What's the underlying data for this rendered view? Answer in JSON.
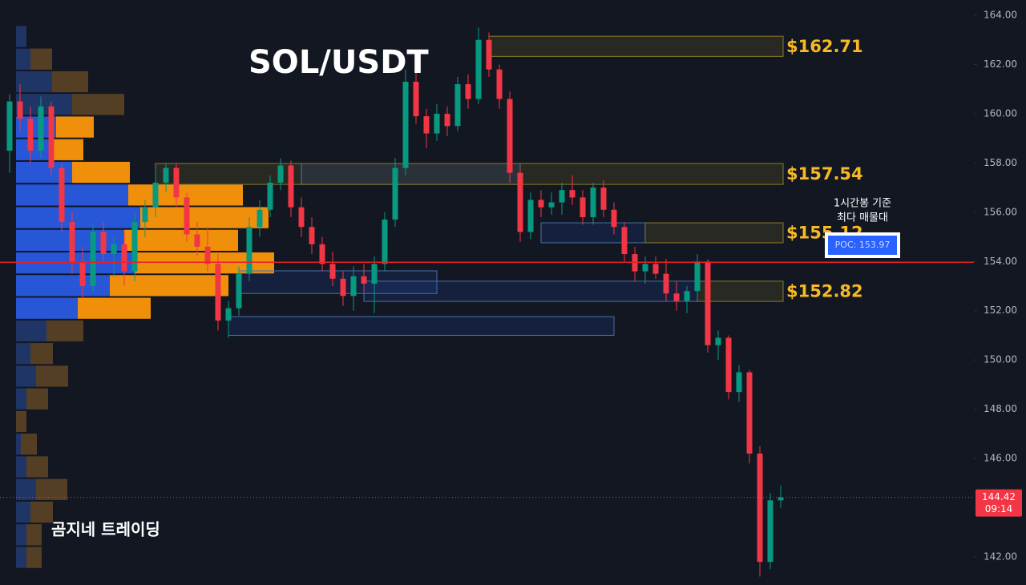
{
  "chart_data": {
    "type": "candlestick",
    "title": "SOL/USDT",
    "watermark": "곰지네 트레이딩",
    "annotation": [
      "1시간봉 기준",
      "최다 매물대"
    ],
    "ylim": [
      140.86,
      164.62
    ],
    "yticks": [
      {
        "value": 142,
        "label": "142.00"
      },
      {
        "value": 144,
        "label": "144.00"
      },
      {
        "value": 146,
        "label": "146.00"
      },
      {
        "value": 148,
        "label": "148.00"
      },
      {
        "value": 150,
        "label": "150.00"
      },
      {
        "value": 152,
        "label": "152.00"
      },
      {
        "value": 154,
        "label": "154.00"
      },
      {
        "value": 156,
        "label": "156.00"
      },
      {
        "value": 158,
        "label": "158.00"
      },
      {
        "value": 160,
        "label": "160.00"
      },
      {
        "value": 162,
        "label": "162.00"
      },
      {
        "value": 164,
        "label": "164.00"
      }
    ],
    "up_color": "#089981",
    "down_color": "#f23645",
    "candles": [
      [
        158.5,
        160.8,
        157.6,
        160.5
      ],
      [
        160.5,
        161.2,
        159.3,
        159.8
      ],
      [
        159.8,
        160.3,
        158.0,
        158.5
      ],
      [
        158.5,
        160.7,
        158.2,
        160.3
      ],
      [
        160.3,
        160.5,
        157.5,
        157.8
      ],
      [
        157.8,
        158.0,
        155.2,
        155.6
      ],
      [
        155.6,
        156.0,
        153.5,
        154.0
      ],
      [
        154.0,
        154.6,
        152.5,
        153.0
      ],
      [
        153.0,
        155.5,
        152.8,
        155.2
      ],
      [
        155.2,
        155.6,
        154.0,
        154.3
      ],
      [
        154.3,
        155.0,
        153.4,
        154.7
      ],
      [
        154.7,
        155.2,
        153.0,
        153.6
      ],
      [
        153.6,
        156.0,
        153.2,
        155.6
      ],
      [
        155.6,
        156.5,
        155.0,
        156.2
      ],
      [
        156.2,
        157.8,
        155.8,
        157.2
      ],
      [
        157.2,
        158.0,
        156.8,
        157.8
      ],
      [
        157.8,
        158.0,
        156.2,
        156.6
      ],
      [
        156.6,
        156.8,
        154.8,
        155.1
      ],
      [
        155.1,
        155.6,
        154.2,
        154.6
      ],
      [
        154.6,
        155.4,
        153.6,
        153.9
      ],
      [
        153.9,
        154.3,
        151.2,
        151.6
      ],
      [
        151.6,
        152.4,
        150.9,
        152.1
      ],
      [
        152.1,
        153.8,
        151.8,
        153.5
      ],
      [
        153.5,
        155.8,
        153.2,
        155.4
      ],
      [
        155.4,
        156.5,
        155.0,
        156.1
      ],
      [
        156.1,
        157.5,
        155.8,
        157.2
      ],
      [
        157.2,
        158.2,
        156.9,
        157.9
      ],
      [
        157.9,
        158.1,
        155.8,
        156.2
      ],
      [
        156.2,
        156.6,
        155.0,
        155.4
      ],
      [
        155.4,
        155.8,
        154.3,
        154.7
      ],
      [
        154.7,
        155.0,
        153.6,
        153.9
      ],
      [
        153.9,
        154.4,
        153.0,
        153.3
      ],
      [
        153.3,
        153.6,
        152.2,
        152.6
      ],
      [
        152.6,
        153.8,
        152.0,
        153.4
      ],
      [
        153.4,
        153.9,
        152.8,
        153.1
      ],
      [
        153.1,
        154.2,
        151.9,
        153.9
      ],
      [
        153.9,
        156.0,
        153.6,
        155.7
      ],
      [
        155.7,
        158.2,
        155.4,
        157.8
      ],
      [
        157.8,
        161.8,
        157.5,
        161.3
      ],
      [
        161.3,
        161.8,
        159.6,
        159.9
      ],
      [
        159.9,
        160.2,
        158.6,
        159.2
      ],
      [
        159.2,
        160.4,
        158.9,
        160.0
      ],
      [
        160.0,
        160.3,
        159.1,
        159.5
      ],
      [
        159.5,
        161.5,
        159.3,
        161.2
      ],
      [
        161.2,
        161.6,
        160.2,
        160.6
      ],
      [
        160.6,
        163.5,
        160.4,
        163.0
      ],
      [
        163.0,
        163.3,
        161.5,
        161.8
      ],
      [
        161.8,
        162.0,
        160.2,
        160.6
      ],
      [
        160.6,
        160.9,
        157.2,
        157.6
      ],
      [
        157.6,
        157.8,
        154.8,
        155.2
      ],
      [
        155.2,
        156.8,
        154.9,
        156.5
      ],
      [
        156.5,
        156.9,
        155.8,
        156.2
      ],
      [
        156.2,
        156.8,
        155.9,
        156.4
      ],
      [
        156.4,
        157.2,
        155.9,
        156.9
      ],
      [
        156.9,
        157.5,
        156.3,
        156.6
      ],
      [
        156.6,
        156.9,
        155.5,
        155.8
      ],
      [
        155.8,
        157.2,
        155.5,
        157.0
      ],
      [
        157.0,
        157.3,
        155.8,
        156.1
      ],
      [
        156.1,
        156.4,
        155.1,
        155.4
      ],
      [
        155.4,
        155.6,
        154.0,
        154.3
      ],
      [
        154.3,
        154.6,
        153.2,
        153.6
      ],
      [
        153.6,
        154.2,
        153.1,
        153.9
      ],
      [
        153.9,
        154.2,
        153.3,
        153.5
      ],
      [
        153.5,
        154.1,
        152.4,
        152.7
      ],
      [
        152.7,
        153.2,
        152.0,
        152.4
      ],
      [
        152.4,
        153.0,
        151.9,
        152.8
      ],
      [
        152.8,
        154.3,
        152.5,
        154.0
      ],
      [
        154.0,
        154.1,
        150.3,
        150.6
      ],
      [
        150.6,
        151.2,
        150.0,
        150.9
      ],
      [
        150.9,
        151.0,
        148.4,
        148.7
      ],
      [
        148.7,
        149.8,
        148.3,
        149.5
      ],
      [
        149.5,
        149.6,
        145.8,
        146.2
      ],
      [
        146.2,
        146.5,
        141.2,
        141.8
      ],
      [
        141.8,
        144.6,
        141.5,
        144.3
      ],
      [
        144.3,
        144.9,
        144.0,
        144.42
      ]
    ],
    "last_price": 144.42,
    "last_time": "09:14",
    "poc": {
      "value": 153.97,
      "label": "POC: 153.97"
    },
    "zones": [
      {
        "high": 163.15,
        "low": 162.33,
        "start": 46,
        "value": 162.71,
        "label": "$162.71"
      },
      {
        "high": 157.98,
        "low": 157.13,
        "start": 14,
        "value": 157.54,
        "label": "$157.54"
      },
      {
        "high": 155.57,
        "low": 154.76,
        "start": 61,
        "value": 155.12,
        "label": "$155.12"
      },
      {
        "high": 153.2,
        "low": 152.38,
        "start": 66,
        "value": 152.82,
        "label": "$152.82"
      }
    ],
    "blue_zones": [
      {
        "high": 157.98,
        "low": 157.13,
        "start": 28,
        "end": 49
      },
      {
        "high": 155.57,
        "low": 154.76,
        "start": 51,
        "end": 61
      },
      {
        "high": 153.62,
        "low": 152.7,
        "start": 22,
        "end": 41
      },
      {
        "high": 153.2,
        "low": 152.38,
        "start": 34,
        "end": 66
      },
      {
        "high": 151.76,
        "low": 151.0,
        "start": 21,
        "end": 58
      }
    ],
    "profile": {
      "bins": [
        163.6,
        162.68,
        161.76,
        160.84,
        159.92,
        159.0,
        158.08,
        157.16,
        156.24,
        155.32,
        154.4,
        153.48,
        152.56,
        151.64,
        150.72,
        149.8,
        148.88,
        147.96,
        147.04,
        146.12,
        145.2,
        144.28,
        143.36,
        142.44,
        141.52
      ],
      "buy": [
        13,
        18,
        45,
        70,
        50,
        45,
        70,
        140,
        155,
        135,
        148,
        117,
        77,
        38,
        18,
        25,
        13,
        0,
        6,
        13,
        25,
        18,
        13,
        13
      ],
      "sell": [
        0,
        27,
        45,
        65,
        47,
        39,
        72,
        143,
        160,
        142,
        174,
        148,
        91,
        46,
        28,
        40,
        27,
        13,
        20,
        27,
        39,
        28,
        19,
        19
      ],
      "value_area": [
        151.64,
        159.92
      ],
      "colors": {
        "buy": "#2756d6",
        "sell": "#f0900a",
        "buy_dim": "#1f3566",
        "sell_dim": "#5c4426"
      }
    }
  }
}
